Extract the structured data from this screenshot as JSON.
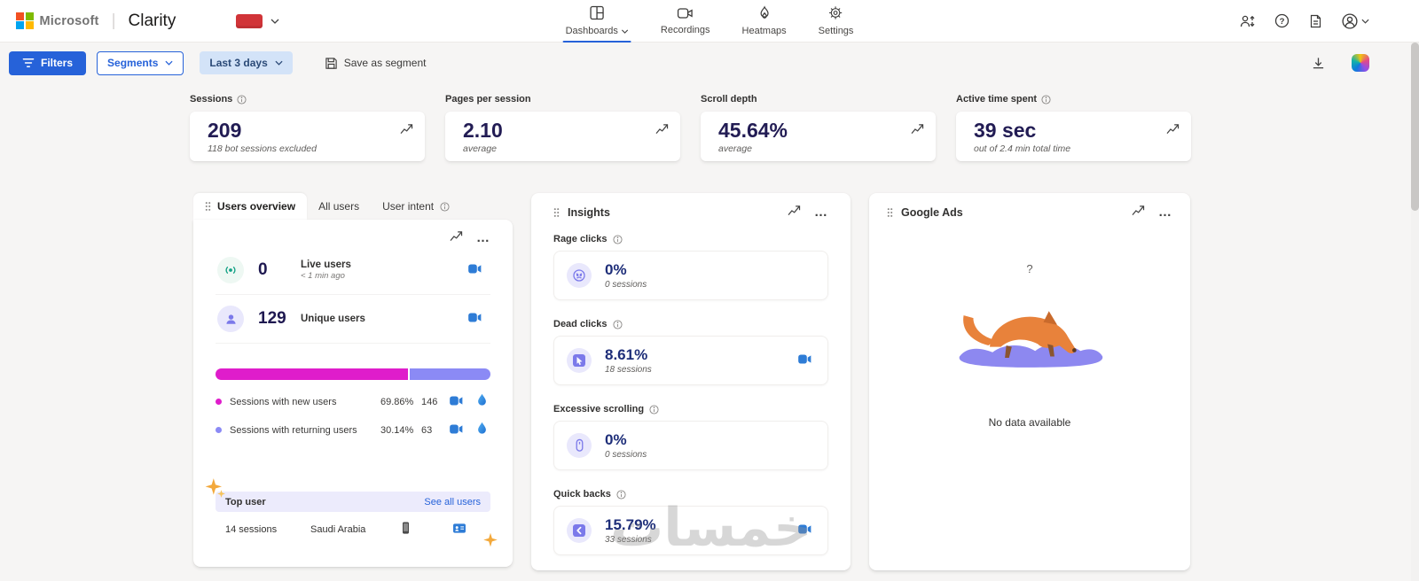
{
  "header": {
    "microsoft": "Microsoft",
    "product": "Clarity",
    "nav": {
      "dashboards": "Dashboards",
      "recordings": "Recordings",
      "heatmaps": "Heatmaps",
      "settings": "Settings"
    }
  },
  "toolbar": {
    "filters": "Filters",
    "segments": "Segments",
    "date_range": "Last 3 days",
    "save_segment": "Save as segment"
  },
  "metrics": [
    {
      "title": "Sessions",
      "value": "209",
      "subtitle": "118 bot sessions excluded"
    },
    {
      "title": "Pages per session",
      "value": "2.10",
      "subtitle": "average"
    },
    {
      "title": "Scroll depth",
      "value": "45.64%",
      "subtitle": "average"
    },
    {
      "title": "Active time spent",
      "value": "39 sec",
      "subtitle": "out of 2.4 min total time"
    }
  ],
  "users_panel": {
    "tabs": [
      {
        "label": "Users overview"
      },
      {
        "label": "All users"
      },
      {
        "label": "User intent"
      }
    ],
    "live": {
      "value": "0",
      "label": "Live users",
      "sub": "< 1 min ago"
    },
    "unique": {
      "value": "129",
      "label": "Unique users"
    },
    "split": {
      "new_pct": 69.86,
      "returning_pct": 30.14
    },
    "legend": [
      {
        "label": "Sessions with new users",
        "pct": "69.86%",
        "count": "146"
      },
      {
        "label": "Sessions with returning users",
        "pct": "30.14%",
        "count": "63"
      }
    ],
    "top_user": {
      "title": "Top user",
      "link": "See all users",
      "sessions": "14 sessions",
      "country": "Saudi Arabia"
    }
  },
  "insights": {
    "title": "Insights",
    "items": [
      {
        "label": "Rage clicks",
        "value": "0%",
        "sessions": "0 sessions"
      },
      {
        "label": "Dead clicks",
        "value": "8.61%",
        "sessions": "18 sessions"
      },
      {
        "label": "Excessive scrolling",
        "value": "0%",
        "sessions": "0 sessions"
      },
      {
        "label": "Quick backs",
        "value": "15.79%",
        "sessions": "33 sessions"
      }
    ]
  },
  "google_ads": {
    "title": "Google Ads",
    "placeholder_mark": "?",
    "empty_text": "No data available"
  },
  "watermark": "خمسات",
  "colors": {
    "accent_blue": "#2662d9",
    "magenta": "#df1dcb",
    "purple": "#8b8af5"
  },
  "icons": {
    "ellipsis": "…",
    "help": "?"
  }
}
